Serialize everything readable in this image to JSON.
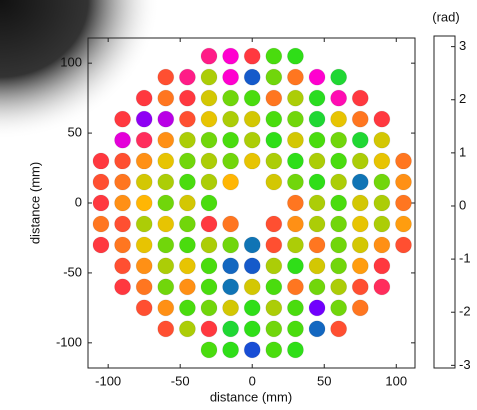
{
  "chart_data": {
    "type": "scatter",
    "xlabel": "distance (mm)",
    "ylabel": "distance (mm)",
    "xlim": [
      -114,
      113
    ],
    "ylim": [
      -118,
      118
    ],
    "xticks": [
      -100,
      -50,
      0,
      50,
      100
    ],
    "yticks": [
      -100,
      -50,
      0,
      50,
      100
    ],
    "colorbar_label": "(rad)",
    "clim": [
      -3.05,
      3.2
    ],
    "cticks": [
      -3,
      -2,
      -1,
      0,
      1,
      2,
      3
    ],
    "colormap": [
      "#6a00ff",
      "#ff00d0",
      "#ff3a3a",
      "#ffc000",
      "#33e010",
      "#00c870",
      "#1a40e0"
    ],
    "x": [
      -30,
      -15,
      0,
      15,
      30,
      -60,
      -45,
      -30,
      -15,
      0,
      15,
      30,
      45,
      60,
      -75,
      -60,
      -45,
      -30,
      -15,
      0,
      15,
      30,
      45,
      60,
      75,
      -90,
      -75,
      -60,
      -45,
      -30,
      -15,
      0,
      15,
      30,
      45,
      60,
      75,
      90,
      -90,
      -75,
      -60,
      -45,
      -30,
      -15,
      0,
      15,
      30,
      45,
      60,
      75,
      90,
      -105,
      -90,
      -75,
      -60,
      -45,
      -30,
      -15,
      0,
      15,
      30,
      45,
      60,
      75,
      90,
      105,
      -105,
      -90,
      -75,
      -60,
      -45,
      -30,
      -15,
      15,
      30,
      45,
      60,
      75,
      90,
      105,
      -105,
      -90,
      -75,
      -60,
      -45,
      -30,
      30,
      45,
      60,
      75,
      90,
      105,
      -105,
      -90,
      -75,
      -60,
      -45,
      -30,
      -15,
      15,
      30,
      45,
      60,
      75,
      90,
      105,
      -105,
      -90,
      -75,
      -60,
      -45,
      -30,
      -15,
      0,
      15,
      30,
      45,
      60,
      75,
      90,
      105,
      -90,
      -75,
      -60,
      -45,
      -30,
      -15,
      0,
      15,
      30,
      45,
      60,
      75,
      90,
      -90,
      -75,
      -60,
      -45,
      -30,
      -15,
      0,
      15,
      30,
      45,
      60,
      75,
      90,
      -75,
      -60,
      -45,
      -30,
      -15,
      0,
      15,
      30,
      45,
      60,
      75,
      -60,
      -45,
      -30,
      -15,
      0,
      15,
      30,
      45,
      60,
      -30,
      -15,
      0,
      15,
      30
    ],
    "y": [
      105,
      105,
      105,
      105,
      105,
      90,
      90,
      90,
      90,
      90,
      90,
      90,
      90,
      90,
      75,
      75,
      75,
      75,
      75,
      75,
      75,
      75,
      75,
      75,
      75,
      60,
      60,
      60,
      60,
      60,
      60,
      60,
      60,
      60,
      60,
      60,
      60,
      60,
      45,
      45,
      45,
      45,
      45,
      45,
      45,
      45,
      45,
      45,
      45,
      45,
      45,
      30,
      30,
      30,
      30,
      30,
      30,
      30,
      30,
      30,
      30,
      30,
      30,
      30,
      30,
      30,
      15,
      15,
      15,
      15,
      15,
      15,
      15,
      15,
      15,
      15,
      15,
      15,
      15,
      15,
      0,
      0,
      0,
      0,
      0,
      0,
      0,
      0,
      0,
      0,
      0,
      0,
      -15,
      -15,
      -15,
      -15,
      -15,
      -15,
      -15,
      -15,
      -15,
      -15,
      -15,
      -15,
      -15,
      -15,
      -30,
      -30,
      -30,
      -30,
      -30,
      -30,
      -30,
      -30,
      -30,
      -30,
      -30,
      -30,
      -30,
      -30,
      -30,
      -45,
      -45,
      -45,
      -45,
      -45,
      -45,
      -45,
      -45,
      -45,
      -45,
      -45,
      -45,
      -45,
      -60,
      -60,
      -60,
      -60,
      -60,
      -60,
      -60,
      -60,
      -60,
      -60,
      -60,
      -60,
      -60,
      -75,
      -75,
      -75,
      -75,
      -75,
      -75,
      -75,
      -75,
      -75,
      -75,
      -75,
      -90,
      -90,
      -90,
      -90,
      -90,
      -90,
      -90,
      -90,
      -90,
      -105,
      -105,
      -105,
      -105,
      -105
    ],
    "values": [
      -1.5,
      -2,
      -1,
      1,
      1.2,
      -0.8,
      -1.5,
      0.5,
      -2,
      3,
      0.8,
      -0.5,
      -2,
      1.5,
      -1,
      -0.5,
      -1,
      0.3,
      0.8,
      1,
      -0.5,
      0.5,
      1.3,
      -1.8,
      -1,
      -1,
      -2.8,
      -2.5,
      -0.8,
      0.2,
      0.5,
      0.3,
      1,
      0.8,
      1.5,
      0.2,
      -0.5,
      -1,
      -2.2,
      -1.2,
      -0.3,
      0.5,
      0.8,
      1,
      0.5,
      1.2,
      0.3,
      1,
      0.8,
      1.5,
      0.3,
      -1,
      -0.8,
      -0.3,
      0.2,
      0.8,
      0.5,
      0.8,
      0.2,
      0.5,
      1.2,
      0.5,
      1,
      0.5,
      0.2,
      -0.5,
      -0.8,
      -0.5,
      0.3,
      0.5,
      1,
      0.5,
      0,
      0.3,
      0.8,
      1.2,
      0.5,
      2.8,
      0.8,
      -0.3,
      -1,
      -0.3,
      0,
      0.8,
      0.3,
      1,
      -0.5,
      0.5,
      1,
      0.3,
      0.5,
      -0.5,
      -0.5,
      -0.8,
      0.5,
      0.2,
      0.8,
      -1,
      -0.5,
      -0.8,
      -0.3,
      0.5,
      0.8,
      0.2,
      0.5,
      -0.2,
      -1,
      -0.5,
      0.2,
      0.8,
      1,
      0.5,
      0.8,
      2.8,
      -0.8,
      0.5,
      -0.5,
      0.8,
      0.3,
      -0.3,
      -0.8,
      -0.8,
      -0.3,
      0.5,
      0.2,
      1,
      2.9,
      3,
      0.5,
      1.2,
      0.3,
      0.8,
      -0.2,
      -1,
      -1,
      -0.5,
      0.8,
      -0.3,
      1,
      2.8,
      0.3,
      1,
      -0.5,
      0.8,
      0.5,
      -0.8,
      -1.2,
      -0.8,
      -0.3,
      1,
      0.8,
      0.3,
      1.2,
      0.5,
      1,
      -3,
      0.8,
      -0.5,
      -0.8,
      0.5,
      -1,
      1.5,
      1.2,
      0.8,
      1,
      2.9,
      -0.8,
      1,
      1.2,
      3.1,
      1,
      1.2
    ]
  }
}
